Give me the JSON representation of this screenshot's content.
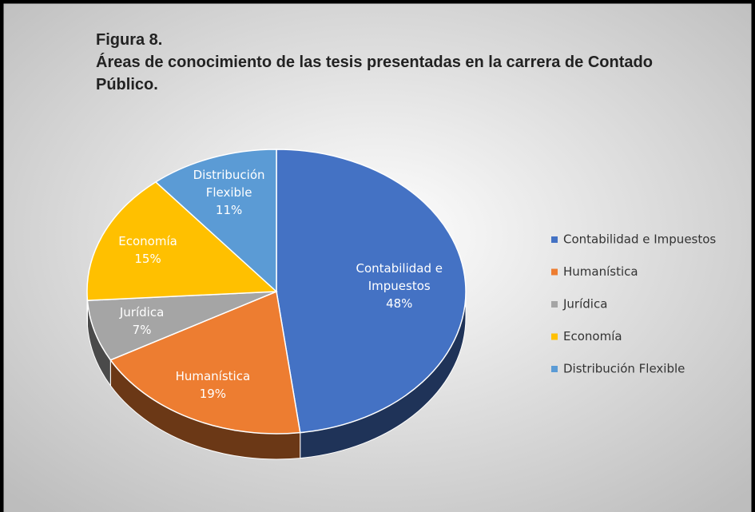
{
  "chart_data": {
    "type": "pie",
    "title": "Figura 8.",
    "subtitle": "Áreas de conocimiento de las tesis presentadas en la carrera de Contado Público.",
    "categories": [
      "Contabilidad e Impuestos",
      "Humanística",
      "Jurídica",
      "Economía",
      "Distribución Flexible"
    ],
    "values": [
      48,
      19,
      7,
      15,
      11
    ],
    "value_labels": [
      "48%",
      "19%",
      "7%",
      "15%",
      "11%"
    ],
    "colors": [
      "#4472c4",
      "#ed7d31",
      "#a5a5a5",
      "#ffc000",
      "#5b9bd5"
    ],
    "legend": "right"
  }
}
